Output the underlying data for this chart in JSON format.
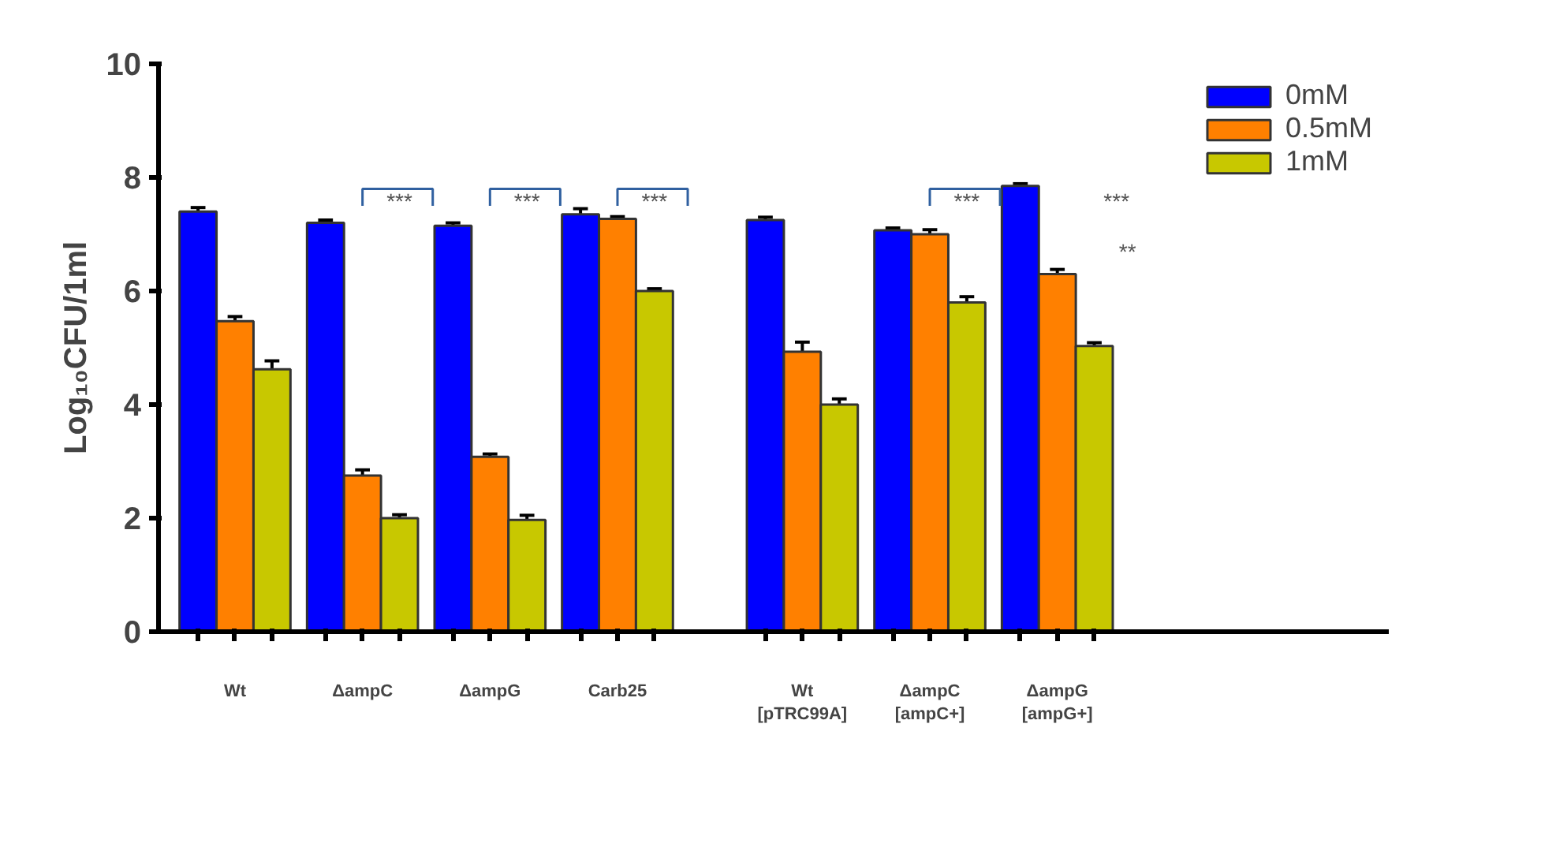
{
  "chart_data": {
    "type": "bar",
    "ylabel": "Log₁₀CFU/1ml",
    "categories": [
      "Wt",
      "ΔampC",
      "ΔampG",
      "Carb25",
      "Wt\n[pTRC99A]",
      "ΔampC\n[ampC+]",
      "ΔampG\n[ampG+]"
    ],
    "series": [
      {
        "name": "0mM",
        "color": "#0000ff",
        "values": [
          7.4,
          7.2,
          7.15,
          7.35,
          7.25,
          7.07,
          7.85
        ],
        "errors": [
          0.07,
          0.05,
          0.05,
          0.1,
          0.05,
          0.04,
          0.04
        ]
      },
      {
        "name": "0.5mM",
        "color": "#ff8000",
        "values": [
          5.47,
          2.75,
          3.08,
          7.27,
          4.93,
          7.0,
          6.3
        ],
        "errors": [
          0.08,
          0.1,
          0.05,
          0.04,
          0.17,
          0.08,
          0.08
        ]
      },
      {
        "name": "1mM",
        "color": "#c8c800",
        "values": [
          4.62,
          2.0,
          1.97,
          6.0,
          4.0,
          5.8,
          5.03
        ],
        "errors": [
          0.15,
          0.06,
          0.08,
          0.04,
          0.1,
          0.1,
          0.06
        ]
      }
    ],
    "ylim": [
      0,
      10
    ],
    "yticks": [
      0,
      2,
      4,
      6,
      8,
      10
    ],
    "grid": false,
    "legend": "top right",
    "annotations": [
      "***",
      "***",
      "***",
      "***",
      "***",
      "**"
    ]
  }
}
